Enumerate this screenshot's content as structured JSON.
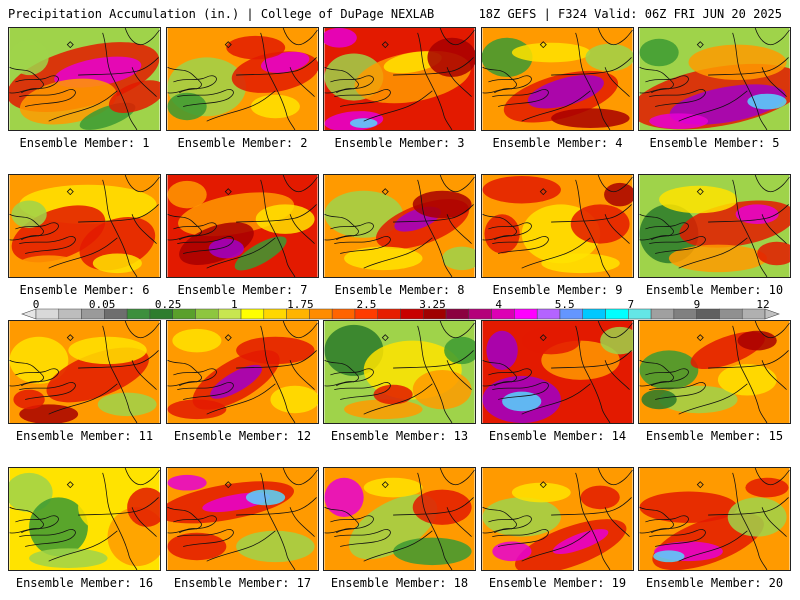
{
  "header": {
    "left": "Precipitation Accumulation (in.) | College of DuPage NEXLAB",
    "right": "18Z GEFS | F324 Valid: 06Z FRI JUN 20 2025"
  },
  "member_prefix": "Ensemble Member: ",
  "members": [
    "1",
    "2",
    "3",
    "4",
    "5",
    "6",
    "7",
    "8",
    "9",
    "10",
    "11",
    "12",
    "13",
    "14",
    "15",
    "16",
    "17",
    "18",
    "19",
    "20"
  ],
  "colorbar": {
    "tick_labels": [
      "0",
      "0.05",
      "0.25",
      "1",
      "1.75",
      "2.5",
      "3.25",
      "4",
      "5.5",
      "7",
      "9",
      "12"
    ],
    "colors": [
      "#d9d9d9",
      "#bdbdbd",
      "#9a9a9a",
      "#6e6e6e",
      "#3d8f3d",
      "#2e7d2e",
      "#5aa02c",
      "#8ec63f",
      "#c8e650",
      "#ffff00",
      "#ffd700",
      "#ffb400",
      "#ff8c00",
      "#ff6400",
      "#ff3c00",
      "#e61e00",
      "#c80000",
      "#a00000",
      "#8b0040",
      "#b4007a",
      "#dc00b4",
      "#ff00ff",
      "#b464ff",
      "#6496ff",
      "#00c8ff",
      "#00ffff",
      "#64e6e6",
      "#a0a0a0",
      "#808080",
      "#606060",
      "#909090",
      "#b0b0b0"
    ]
  },
  "map_colors": {
    "background": "#ffe300",
    "orange": "#ff9a00",
    "red": "#e31a00",
    "darkred": "#a80000",
    "magenta": "#e600d2",
    "purple": "#a000c8",
    "cyan": "#55d7ff",
    "lightgreen": "#9fd34a",
    "green": "#3c9a32",
    "darkgreen": "#2a7a2a"
  }
}
